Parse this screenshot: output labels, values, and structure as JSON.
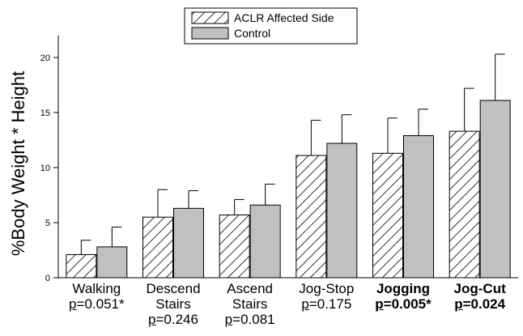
{
  "chart_data": {
    "type": "bar",
    "ylabel": "%Body Weight * Height",
    "ylim": [
      0,
      22
    ],
    "yticks": [
      0,
      5,
      10,
      15,
      20
    ],
    "legend_position": "top-center",
    "categories": [
      {
        "name_line1": "Walking",
        "name_line2": "",
        "p_prefix": "p",
        "p_rest": "=0.051*",
        "bold": false
      },
      {
        "name_line1": "Descend",
        "name_line2": "Stairs",
        "p_prefix": "p",
        "p_rest": "=0.246",
        "bold": false
      },
      {
        "name_line1": "Ascend",
        "name_line2": "Stairs",
        "p_prefix": "p",
        "p_rest": "=0.081",
        "bold": false
      },
      {
        "name_line1": "Jog-Stop",
        "name_line2": "",
        "p_prefix": "p",
        "p_rest": "=0.175",
        "bold": false
      },
      {
        "name_line1": "Jogging",
        "name_line2": "",
        "p_prefix": "p",
        "p_rest": "=0.005*",
        "bold": true
      },
      {
        "name_line1": "Jog-Cut",
        "name_line2": "",
        "p_prefix": "p",
        "p_rest": "=0.024",
        "bold": true
      }
    ],
    "series": [
      {
        "name": "ACLR Affected Side",
        "pattern": "hatched",
        "values": [
          2.1,
          5.5,
          5.7,
          11.1,
          11.3,
          13.3
        ],
        "errors": [
          1.3,
          2.5,
          1.4,
          3.2,
          3.2,
          3.9
        ]
      },
      {
        "name": "Control",
        "pattern": "solid",
        "color": "#c0c0c0",
        "values": [
          2.8,
          6.3,
          6.6,
          12.2,
          12.9,
          16.1
        ],
        "errors": [
          1.8,
          1.6,
          1.9,
          2.6,
          2.4,
          4.2
        ]
      }
    ]
  }
}
